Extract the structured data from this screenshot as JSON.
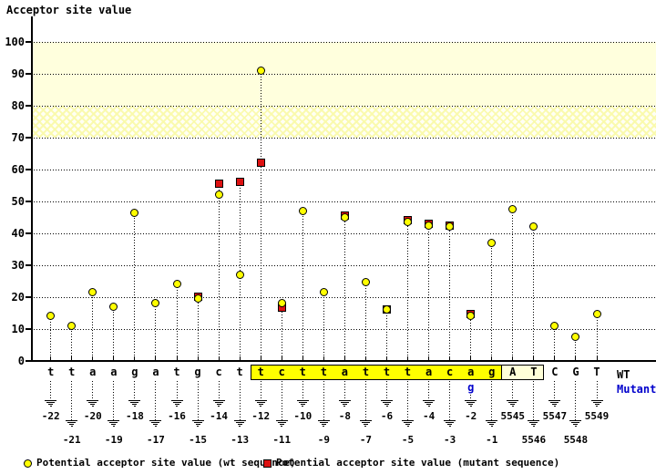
{
  "title": "Acceptor site value",
  "legend": {
    "wt_label": "Potential acceptor site value (wt sequence)",
    "mutant_label": "Potential acceptor site value (mutant sequence)"
  },
  "row_labels": {
    "wt": "WT",
    "mutant": "Mutant"
  },
  "colors": {
    "wt_marker": "#ffff00",
    "mutant_marker": "#dd1111",
    "mutant_text": "#0000cc",
    "band_solid": "#ffffdd",
    "intron_highlight": "#ffff00",
    "exon_box": "#ffffd8",
    "axis": "#000000"
  },
  "chart_data": {
    "type": "scatter",
    "title": "Acceptor site value",
    "ylabel": "Acceptor site value",
    "xlabel": "",
    "ylim": [
      0,
      107
    ],
    "y_ticks": [
      0,
      10,
      20,
      30,
      40,
      50,
      60,
      70,
      80,
      90,
      100
    ],
    "grid": "dotted horizontal gridlines at every 10 units",
    "legend_position": "bottom",
    "highlight_bands": [
      {
        "from": 80,
        "to": 100,
        "style": "solid"
      },
      {
        "from": 70,
        "to": 80,
        "style": "hatched"
      }
    ],
    "x": [
      "-22",
      "-21",
      "-20",
      "-19",
      "-18",
      "-17",
      "-16",
      "-15",
      "-14",
      "-13",
      "-12",
      "-11",
      "-10",
      "-9",
      "-8",
      "-7",
      "-6",
      "-5",
      "-4",
      "-3",
      "-2",
      "-1",
      "5545",
      "5546",
      "5547",
      "5548",
      "5549"
    ],
    "sequence_wt": [
      "t",
      "t",
      "a",
      "a",
      "g",
      "a",
      "t",
      "g",
      "c",
      "t",
      "t",
      "c",
      "t",
      "t",
      "a",
      "t",
      "t",
      "t",
      "a",
      "c",
      "a",
      "g",
      "A",
      "T",
      "C",
      "G",
      "T"
    ],
    "series": [
      {
        "name": "Potential acceptor site value (wt sequence)",
        "marker": "circle",
        "color": "#ffff00",
        "values": [
          14,
          11,
          21.5,
          17,
          46.5,
          18,
          24,
          19.5,
          52,
          27,
          91,
          18,
          47,
          21.5,
          45,
          24.5,
          16,
          43.5,
          42.5,
          42,
          14,
          37,
          47.5,
          42,
          11,
          7.5,
          14.5
        ]
      },
      {
        "name": "Potential acceptor site value (mutant sequence)",
        "marker": "square",
        "color": "#dd1111",
        "values": [
          null,
          null,
          null,
          null,
          null,
          null,
          null,
          20,
          55.5,
          56,
          62,
          16.5,
          null,
          null,
          45.5,
          null,
          16,
          44,
          43,
          42.5,
          14.5,
          null,
          null,
          null,
          null,
          null,
          null
        ]
      }
    ],
    "intron_highlight_region": {
      "from": "-12",
      "to": "-1"
    },
    "exon_box_region": {
      "from": "5545",
      "to": "5546"
    },
    "mutation": {
      "position": "-2",
      "wt_base": "a",
      "mutant_base": "g"
    }
  }
}
